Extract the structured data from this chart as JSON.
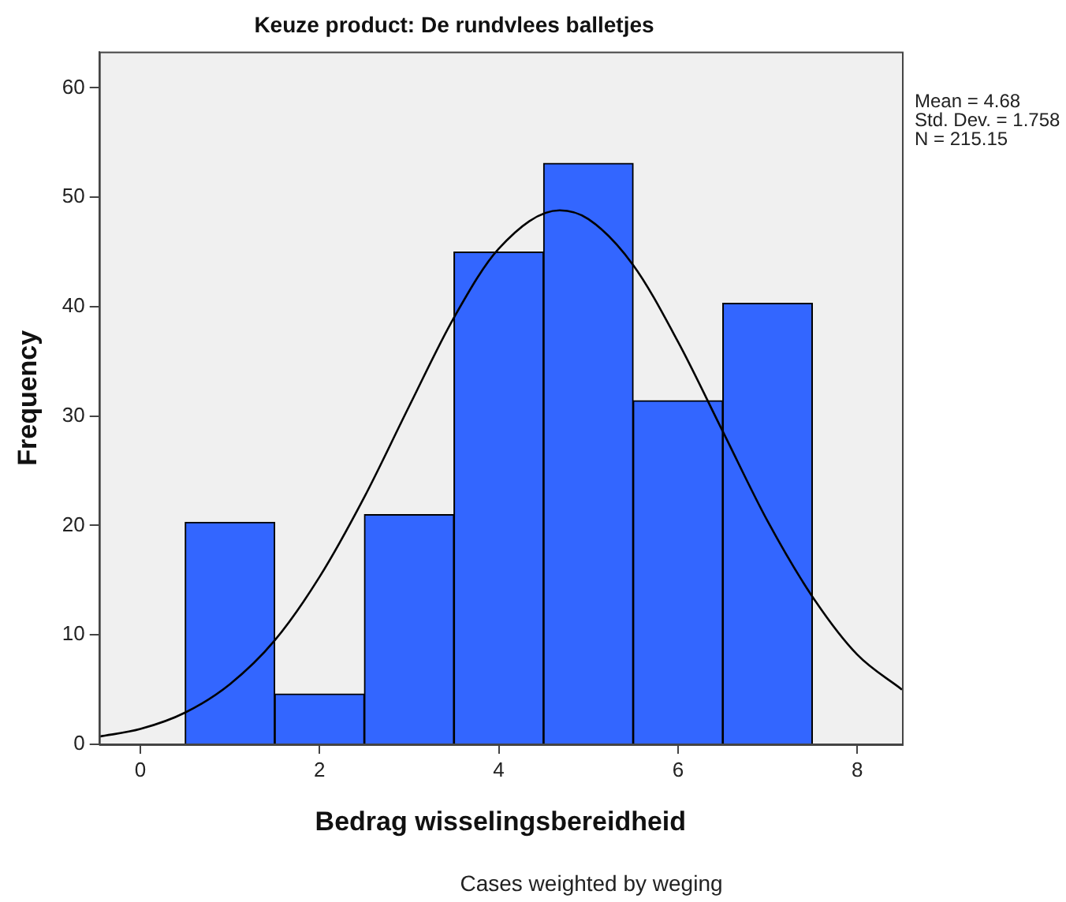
{
  "chart_data": {
    "type": "histogram",
    "title": "Keuze product: De rundvlees balletjes",
    "xlabel": "Bedrag wisselingsbereidheid",
    "ylabel": "Frequency",
    "annotations": [
      "Mean = 4.68",
      "Std. Dev. = 1.758",
      "N = 215.15",
      "Cases weighted by weging"
    ],
    "bins": [
      0.5,
      1.5,
      2.5,
      3.5,
      4.5,
      5.5,
      6.5,
      7.5
    ],
    "series": [
      {
        "color": "#3366ff",
        "values": [
          20.3,
          4.6,
          21,
          45,
          53.1,
          31.4,
          40.3
        ]
      },
      {
        "type": "line",
        "color": "#000000",
        "x": [
          -0.46,
          0,
          0.5,
          1,
          1.5,
          2,
          2.5,
          3,
          3.5,
          4,
          4.68,
          5,
          5.5,
          6,
          6.5,
          7,
          7.5,
          8,
          8.5
        ],
        "values": [
          0.7,
          1.4,
          2.9,
          5.5,
          9.5,
          15.3,
          22.6,
          30.9,
          39,
          45.3,
          48.8,
          48,
          43.8,
          36.8,
          28.6,
          20.4,
          13.5,
          8.2,
          5
        ]
      }
    ],
    "xlim": [
      -0.46,
      8.5
    ],
    "xticks": [
      0,
      2,
      4,
      6,
      8
    ],
    "ylim": [
      0,
      63.3
    ],
    "yticks": [
      0,
      10,
      20,
      30,
      40,
      50,
      60
    ],
    "grid": false,
    "legend": false,
    "marker": "none",
    "line_style": "solid"
  }
}
